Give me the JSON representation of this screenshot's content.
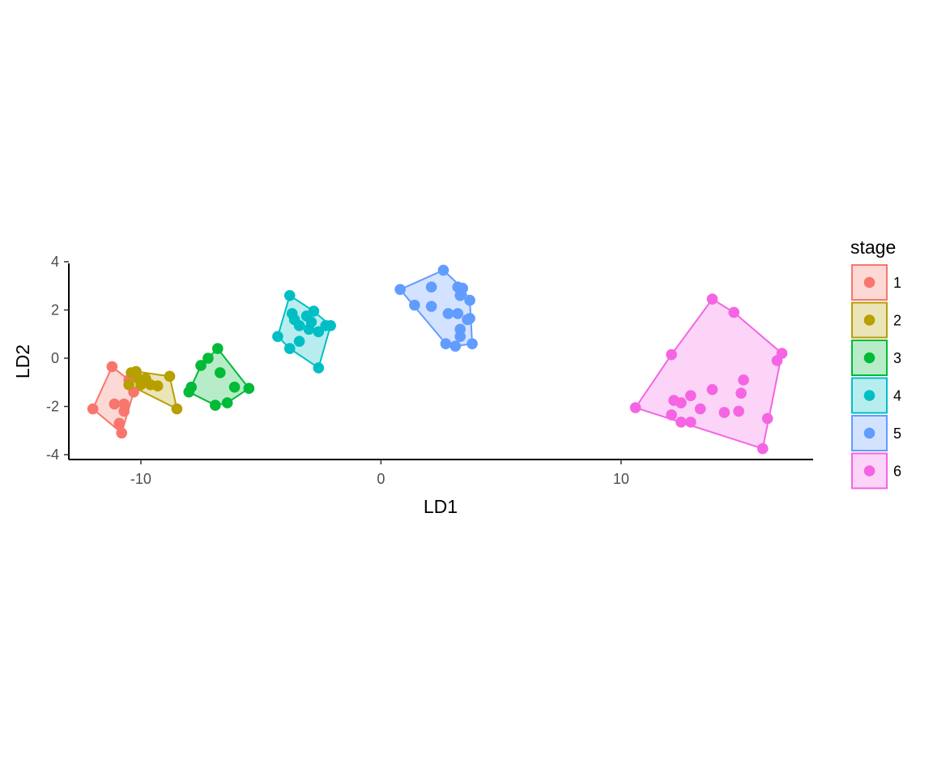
{
  "chart_data": {
    "type": "scatter",
    "title": "",
    "xlabel": "LD1",
    "ylabel": "LD2",
    "xlim": [
      -13,
      18
    ],
    "ylim": [
      -4.2,
      4.1
    ],
    "x_ticks": [
      -10,
      0,
      10
    ],
    "x_tick_labels": [
      "-10",
      "0",
      "10"
    ],
    "y_ticks": [
      -4,
      -2,
      0,
      2,
      4
    ],
    "y_tick_labels": [
      "-4",
      "-2",
      "0",
      "2",
      "4"
    ],
    "grid": false,
    "legend": {
      "title": "stage",
      "position": "right"
    },
    "hulls": true,
    "series": [
      {
        "name": "1",
        "color": "#F8766D",
        "points": [
          [
            -11.2,
            -0.35
          ],
          [
            -11.1,
            -1.9
          ],
          [
            -10.7,
            -1.9
          ],
          [
            -10.7,
            -2.2
          ],
          [
            -10.9,
            -2.7
          ],
          [
            -10.8,
            -3.1
          ],
          [
            -12.0,
            -2.1
          ],
          [
            -10.3,
            -1.4
          ],
          [
            -10.5,
            -0.9
          ]
        ]
      },
      {
        "name": "2",
        "color": "#B79F00",
        "points": [
          [
            -10.4,
            -0.6
          ],
          [
            -10.2,
            -0.55
          ],
          [
            -10.1,
            -0.85
          ],
          [
            -9.8,
            -0.85
          ],
          [
            -10.0,
            -1.1
          ],
          [
            -9.6,
            -1.1
          ],
          [
            -10.5,
            -1.1
          ],
          [
            -9.3,
            -1.15
          ],
          [
            -8.8,
            -0.75
          ],
          [
            -8.5,
            -2.1
          ]
        ]
      },
      {
        "name": "3",
        "color": "#00BA38",
        "points": [
          [
            -6.8,
            0.4
          ],
          [
            -7.2,
            0.0
          ],
          [
            -7.5,
            -0.3
          ],
          [
            -6.7,
            -0.6
          ],
          [
            -7.9,
            -1.2
          ],
          [
            -8.0,
            -1.4
          ],
          [
            -6.1,
            -1.2
          ],
          [
            -5.5,
            -1.25
          ],
          [
            -6.4,
            -1.85
          ],
          [
            -6.9,
            -1.95
          ]
        ]
      },
      {
        "name": "4",
        "color": "#00BFC4",
        "points": [
          [
            -3.8,
            2.6
          ],
          [
            -3.7,
            1.85
          ],
          [
            -3.1,
            1.75
          ],
          [
            -2.8,
            1.95
          ],
          [
            -3.6,
            1.6
          ],
          [
            -3.4,
            1.35
          ],
          [
            -3.0,
            1.2
          ],
          [
            -2.6,
            1.1
          ],
          [
            -2.3,
            1.35
          ],
          [
            -2.1,
            1.35
          ],
          [
            -4.3,
            0.9
          ],
          [
            -3.4,
            0.7
          ],
          [
            -3.8,
            0.4
          ],
          [
            -2.6,
            -0.4
          ],
          [
            -2.9,
            1.5
          ]
        ]
      },
      {
        "name": "5",
        "color": "#619CFF",
        "points": [
          [
            2.6,
            3.65
          ],
          [
            0.8,
            2.85
          ],
          [
            2.1,
            2.95
          ],
          [
            3.2,
            2.95
          ],
          [
            3.4,
            2.9
          ],
          [
            3.3,
            2.6
          ],
          [
            3.7,
            2.4
          ],
          [
            1.4,
            2.2
          ],
          [
            2.1,
            2.15
          ],
          [
            2.8,
            1.85
          ],
          [
            3.2,
            1.85
          ],
          [
            3.7,
            1.65
          ],
          [
            3.6,
            1.6
          ],
          [
            3.3,
            1.2
          ],
          [
            3.3,
            0.9
          ],
          [
            2.7,
            0.6
          ],
          [
            3.1,
            0.5
          ],
          [
            3.8,
            0.6
          ]
        ]
      },
      {
        "name": "6",
        "color": "#F564E3",
        "points": [
          [
            13.8,
            2.45
          ],
          [
            14.7,
            1.9
          ],
          [
            12.1,
            0.15
          ],
          [
            16.7,
            0.2
          ],
          [
            16.5,
            -0.1
          ],
          [
            15.1,
            -0.9
          ],
          [
            13.8,
            -1.3
          ],
          [
            15.0,
            -1.45
          ],
          [
            12.9,
            -1.55
          ],
          [
            12.2,
            -1.75
          ],
          [
            12.5,
            -1.85
          ],
          [
            10.6,
            -2.05
          ],
          [
            13.3,
            -2.1
          ],
          [
            14.3,
            -2.25
          ],
          [
            14.9,
            -2.2
          ],
          [
            12.1,
            -2.35
          ],
          [
            12.5,
            -2.65
          ],
          [
            12.9,
            -2.65
          ],
          [
            16.1,
            -2.5
          ],
          [
            15.9,
            -3.75
          ]
        ]
      }
    ]
  }
}
